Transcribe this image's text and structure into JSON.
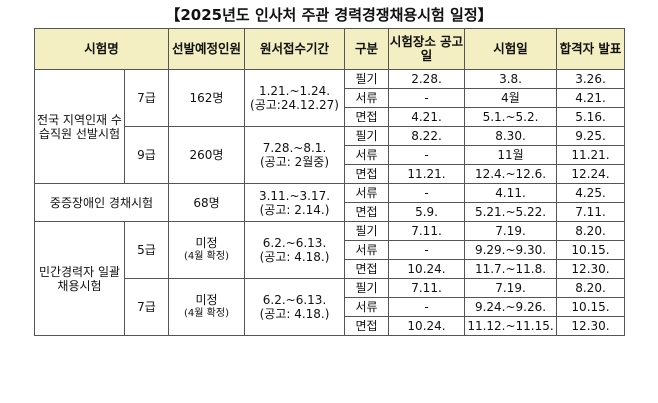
{
  "title": "【2025년도 인사처 주관 경력경쟁채용시험 일정】",
  "headers": [
    "시험명",
    "선발예정인원",
    "원서접수기간",
    "구분",
    "시험장소 공고일",
    "시험일",
    "합격자 발표"
  ],
  "groups": {
    "g1": {
      "name": "전국 지역인재 수습직원 선발시험"
    },
    "g2": {
      "name": "중증장애인 경채시험"
    },
    "g3": {
      "name": "민간경력자 일괄채용시험"
    }
  },
  "blocks": {
    "b1": {
      "grade": "7급",
      "count": "162명",
      "period": "1.21.~1.24.",
      "notice": "(공고:24.12.27)",
      "rows": [
        {
          "type": "필기",
          "place": "2.28.",
          "exam": "3.8.",
          "result": "3.26."
        },
        {
          "type": "서류",
          "place": "-",
          "exam": "4월",
          "result": "4.21."
        },
        {
          "type": "면접",
          "place": "4.21.",
          "exam": "5.1.~5.2.",
          "result": "5.16."
        }
      ]
    },
    "b2": {
      "grade": "9급",
      "count": "260명",
      "period": "7.28.~8.1.",
      "notice": "(공고: 2월중)",
      "rows": [
        {
          "type": "필기",
          "place": "8.22.",
          "exam": "8.30.",
          "result": "9.25."
        },
        {
          "type": "서류",
          "place": "-",
          "exam": "11월",
          "result": "11.21."
        },
        {
          "type": "면접",
          "place": "11.21.",
          "exam": "12.4.~12.6.",
          "result": "12.24."
        }
      ]
    },
    "b3": {
      "count": "68명",
      "period": "3.11.~3.17.",
      "notice": "(공고: 2.14.)",
      "rows": [
        {
          "type": "서류",
          "place": "-",
          "exam": "4.11.",
          "result": "4.25."
        },
        {
          "type": "면접",
          "place": "5.9.",
          "exam": "5.21.~5.22.",
          "result": "7.11."
        }
      ]
    },
    "b4": {
      "grade": "5급",
      "count": "미정",
      "count_note": "(4월 확정)",
      "period": "6.2.~6.13.",
      "notice": "(공고: 4.18.)",
      "rows": [
        {
          "type": "필기",
          "place": "7.11.",
          "exam": "7.19.",
          "result": "8.20."
        },
        {
          "type": "서류",
          "place": "-",
          "exam": "9.29.~9.30.",
          "result": "10.15."
        },
        {
          "type": "면접",
          "place": "10.24.",
          "exam": "11.7.~11.8.",
          "result": "12.30."
        }
      ]
    },
    "b5": {
      "grade": "7급",
      "count": "미정",
      "count_note": "(4월 확정)",
      "period": "6.2.~6.13.",
      "notice": "(공고: 4.18.)",
      "rows": [
        {
          "type": "필기",
          "place": "7.11.",
          "exam": "7.19.",
          "result": "8.20."
        },
        {
          "type": "서류",
          "place": "-",
          "exam": "9.24.~9.26.",
          "result": "10.15."
        },
        {
          "type": "면접",
          "place": "10.24.",
          "exam": "11.12.~11.15.",
          "result": "12.30."
        }
      ]
    }
  }
}
